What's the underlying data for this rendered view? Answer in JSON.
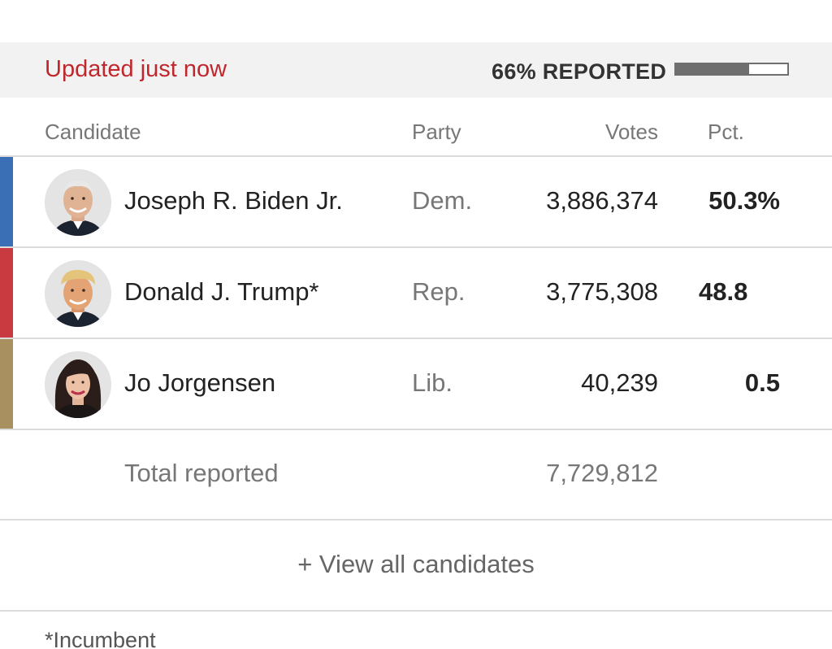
{
  "status": {
    "updated_text": "Updated just now",
    "reported_label": "66% REPORTED",
    "reported_fraction": 0.66,
    "bar_color": "#6f6f6f"
  },
  "table": {
    "headers": {
      "candidate": "Candidate",
      "party": "Party",
      "votes": "Votes",
      "pct": "Pct."
    },
    "rows": [
      {
        "name": "Joseph R. Biden Jr.",
        "party": "Dem.",
        "votes": "3,886,374",
        "pct": "50.3%",
        "party_color": "#3a6eb5"
      },
      {
        "name": "Donald J. Trump*",
        "party": "Rep.",
        "votes": "3,775,308",
        "pct": "48.8",
        "party_color": "#c83a3f"
      },
      {
        "name": "Jo Jorgensen",
        "party": "Lib.",
        "votes": "40,239",
        "pct": "0.5",
        "party_color": "#a89060"
      }
    ],
    "total": {
      "label": "Total reported",
      "votes": "7,729,812"
    }
  },
  "view_all_label": "+ View all candidates",
  "footnote": "*Incumbent"
}
